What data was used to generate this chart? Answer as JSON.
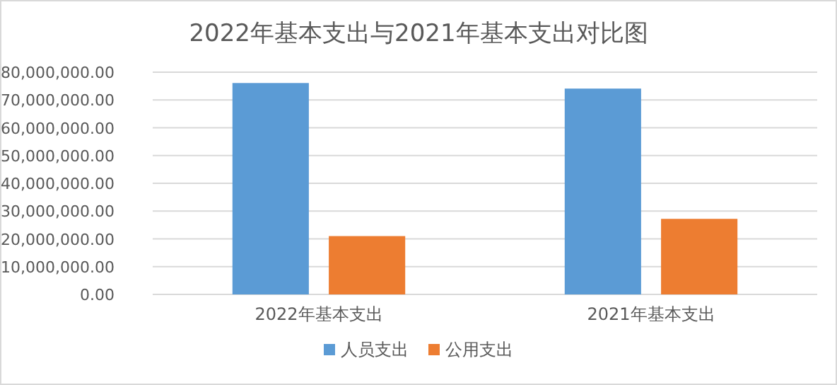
{
  "chart_data": {
    "type": "bar",
    "title": "2022年基本支出与2021年基本支出对比图",
    "categories": [
      "2022年基本支出",
      "2021年基本支出"
    ],
    "series": [
      {
        "name": "人员支出",
        "color": "#5b9bd5",
        "values": [
          76100000,
          74100000
        ]
      },
      {
        "name": "公用支出",
        "color": "#ed7d31",
        "values": [
          21000000,
          27200000
        ]
      }
    ],
    "ylim": [
      0,
      80000000
    ],
    "yticks": [
      {
        "value": 0,
        "label": "0.00"
      },
      {
        "value": 10000000,
        "label": "10,000,000.00"
      },
      {
        "value": 20000000,
        "label": "20,000,000.00"
      },
      {
        "value": 30000000,
        "label": "30,000,000.00"
      },
      {
        "value": 40000000,
        "label": "40,000,000.00"
      },
      {
        "value": 50000000,
        "label": "50,000,000.00"
      },
      {
        "value": 60000000,
        "label": "60,000,000.00"
      },
      {
        "value": 70000000,
        "label": "70,000,000.00"
      },
      {
        "value": 80000000,
        "label": "80,000,000.00"
      }
    ],
    "grid": "y",
    "legend": "bottom"
  }
}
